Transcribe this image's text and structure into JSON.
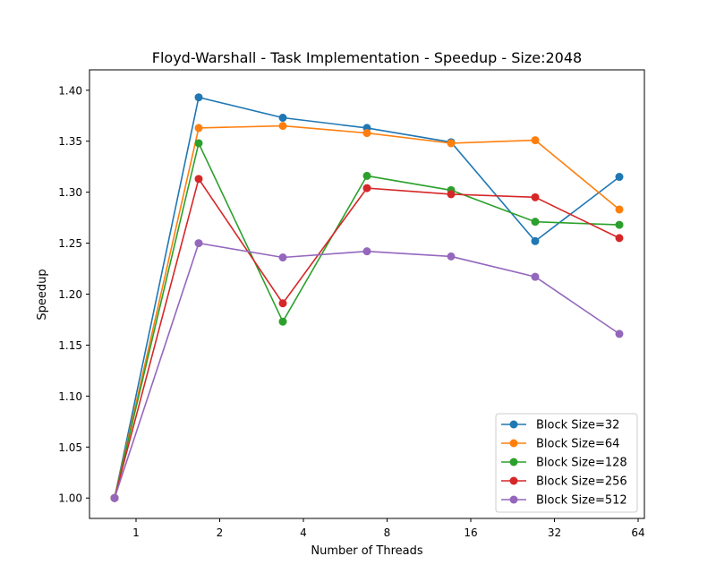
{
  "chart_data": {
    "type": "line",
    "title": "Floyd-Warshall - Task Implementation - Speedup - Size:2048",
    "xlabel": "Number of Threads",
    "ylabel": "Speedup",
    "x": [
      1,
      2,
      4,
      8,
      16,
      32,
      64
    ],
    "x_scale": "log2",
    "xticks": [
      1,
      2,
      4,
      8,
      16,
      32,
      64
    ],
    "xtick_labels": [
      "1",
      "2",
      "4",
      "8",
      "16",
      "32",
      "64"
    ],
    "ylim": [
      0.98,
      1.42
    ],
    "yticks": [
      1.0,
      1.05,
      1.1,
      1.15,
      1.2,
      1.25,
      1.3,
      1.35,
      1.4
    ],
    "ytick_labels": [
      "1.00",
      "1.05",
      "1.10",
      "1.15",
      "1.20",
      "1.25",
      "1.30",
      "1.35",
      "1.40"
    ],
    "grid": false,
    "legend_position": "lower-right",
    "series": [
      {
        "name": "Block Size=32",
        "color": "#1f77b4",
        "values": [
          1.0,
          1.393,
          1.373,
          1.363,
          1.349,
          1.252,
          1.315
        ]
      },
      {
        "name": "Block Size=64",
        "color": "#ff7f0e",
        "values": [
          1.0,
          1.363,
          1.365,
          1.358,
          1.348,
          1.351,
          1.283
        ]
      },
      {
        "name": "Block Size=128",
        "color": "#2ca02c",
        "values": [
          1.0,
          1.348,
          1.173,
          1.316,
          1.302,
          1.271,
          1.268
        ]
      },
      {
        "name": "Block Size=256",
        "color": "#d62728",
        "values": [
          1.0,
          1.313,
          1.191,
          1.304,
          1.298,
          1.295,
          1.255
        ]
      },
      {
        "name": "Block Size=512",
        "color": "#9467bd",
        "values": [
          1.0,
          1.25,
          1.236,
          1.242,
          1.237,
          1.217,
          1.161
        ]
      }
    ]
  }
}
